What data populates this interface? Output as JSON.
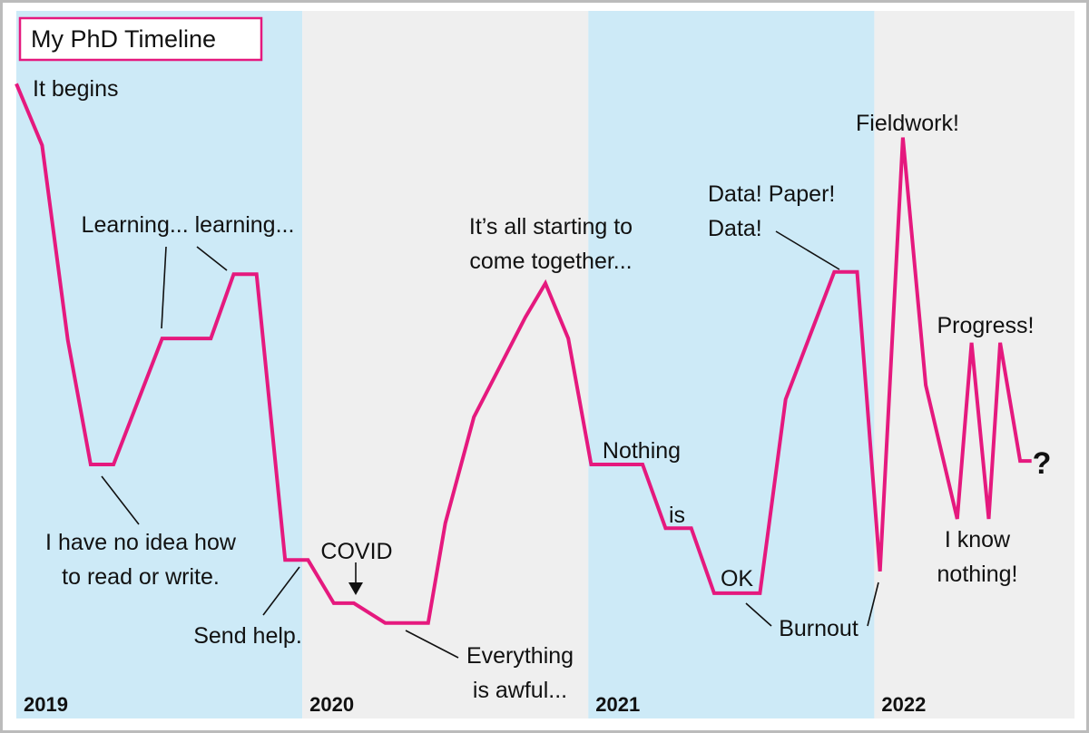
{
  "chart_data": {
    "type": "line",
    "title": "My PhD Timeline",
    "color": "#e5197e",
    "band_colors": [
      "#cdeaf7",
      "#efefef"
    ],
    "xlim": [
      2019,
      2022.7
    ],
    "ylim": [
      0,
      100
    ],
    "xticks": [
      2019,
      2020,
      2021,
      2022
    ],
    "x": [
      2019,
      2019.09,
      2019.18,
      2019.26,
      2019.34,
      2019.51,
      2019.68,
      2019.76,
      2019.84,
      2019.94,
      2020.02,
      2020.11,
      2020.18,
      2020.29,
      2020.44,
      2020.5,
      2020.6,
      2020.78,
      2020.85,
      2020.93,
      2021.01,
      2021.19,
      2021.27,
      2021.36,
      2021.44,
      2021.6,
      2021.69,
      2021.86,
      2021.94,
      2022.02,
      2022.1,
      2022.18,
      2022.29,
      2022.34,
      2022.4,
      2022.44,
      2022.51,
      2022.55
    ],
    "values": [
      89.7,
      81,
      53.5,
      35.9,
      35.9,
      53.7,
      53.7,
      62.8,
      62.8,
      22.4,
      22.4,
      16.3,
      16.3,
      13.5,
      13.5,
      27.6,
      42.6,
      56.7,
      61.5,
      53.7,
      35.9,
      35.9,
      26.9,
      26.9,
      17.7,
      17.7,
      45.1,
      63.1,
      63.1,
      20.8,
      82.1,
      47.1,
      28.2,
      53.1,
      28.2,
      53.1,
      36.4,
      36.4
    ],
    "annotations": [
      {
        "lines": [
          "It begins"
        ]
      },
      {
        "lines": [
          "Learning... learning..."
        ]
      },
      {
        "lines": [
          "I have no idea how",
          "to read or write."
        ]
      },
      {
        "lines": [
          "Send help."
        ]
      },
      {
        "lines": [
          "COVID"
        ]
      },
      {
        "lines": [
          "Everything",
          "is awful..."
        ]
      },
      {
        "lines": [
          "It’s all starting to",
          "come together..."
        ]
      },
      {
        "lines": [
          "Nothing"
        ]
      },
      {
        "lines": [
          "is"
        ]
      },
      {
        "lines": [
          "OK"
        ]
      },
      {
        "lines": [
          "Burnout"
        ]
      },
      {
        "lines": [
          "Data! Paper!",
          "Data!"
        ]
      },
      {
        "lines": [
          "Fieldwork!"
        ]
      },
      {
        "lines": [
          "Progress!"
        ]
      },
      {
        "lines": [
          "I know",
          "nothing!"
        ]
      },
      {
        "lines": [
          "?"
        ]
      }
    ]
  }
}
